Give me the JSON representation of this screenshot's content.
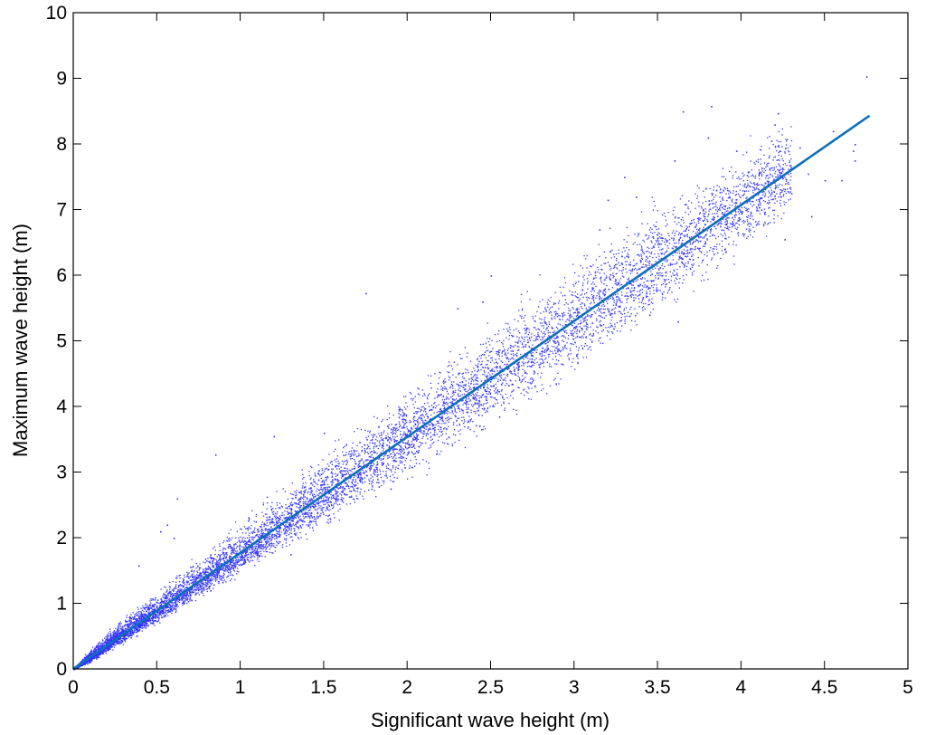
{
  "chart_data": {
    "type": "scatter",
    "title": "",
    "xlabel": "Significant wave height (m)",
    "ylabel": "Maximum wave height (m)",
    "xlim": [
      0,
      5
    ],
    "ylim": [
      0,
      10
    ],
    "xticks": [
      0,
      0.5,
      1,
      1.5,
      2,
      2.5,
      3,
      3.5,
      4,
      4.5,
      5
    ],
    "xtick_labels": [
      "0",
      "0.5",
      "1",
      "1.5",
      "2",
      "2.5",
      "3",
      "3.5",
      "4",
      "4.5",
      "5"
    ],
    "yticks": [
      0,
      1,
      2,
      3,
      4,
      5,
      6,
      7,
      8,
      9,
      10
    ],
    "ytick_labels": [
      "0",
      "1",
      "2",
      "3",
      "4",
      "5",
      "6",
      "7",
      "8",
      "9",
      "10"
    ],
    "grid": false,
    "colors": {
      "points": "#3333ff",
      "fit_line": "#0e6fb8",
      "axes": "#000000"
    },
    "series": [
      {
        "kind": "points",
        "summary_bands": [
          {
            "hs": 0.1,
            "hmax_low": 0.12,
            "hmax_center": 0.18,
            "hmax_high": 0.27
          },
          {
            "hs": 0.25,
            "hmax_low": 0.36,
            "hmax_center": 0.45,
            "hmax_high": 0.62
          },
          {
            "hs": 0.5,
            "hmax_low": 0.75,
            "hmax_center": 0.89,
            "hmax_high": 1.1
          },
          {
            "hs": 0.75,
            "hmax_low": 1.15,
            "hmax_center": 1.33,
            "hmax_high": 1.6
          },
          {
            "hs": 1.0,
            "hmax_low": 1.55,
            "hmax_center": 1.77,
            "hmax_high": 2.1
          },
          {
            "hs": 1.5,
            "hmax_low": 2.3,
            "hmax_center": 2.66,
            "hmax_high": 3.1
          },
          {
            "hs": 2.0,
            "hmax_low": 3.1,
            "hmax_center": 3.55,
            "hmax_high": 4.1
          },
          {
            "hs": 2.5,
            "hmax_low": 3.9,
            "hmax_center": 4.44,
            "hmax_high": 5.0
          },
          {
            "hs": 3.0,
            "hmax_low": 4.7,
            "hmax_center": 5.32,
            "hmax_high": 6.0
          },
          {
            "hs": 3.5,
            "hmax_low": 5.6,
            "hmax_center": 6.2,
            "hmax_high": 6.9
          },
          {
            "hs": 4.0,
            "hmax_low": 6.5,
            "hmax_center": 7.1,
            "hmax_high": 7.7
          }
        ],
        "outliers": [
          [
            0.39,
            1.58
          ],
          [
            0.52,
            2.1
          ],
          [
            0.56,
            2.2
          ],
          [
            0.6,
            2.0
          ],
          [
            0.62,
            2.6
          ],
          [
            0.82,
            1.2
          ],
          [
            0.85,
            3.27
          ],
          [
            1.05,
            2.3
          ],
          [
            1.2,
            3.55
          ],
          [
            1.3,
            1.75
          ],
          [
            1.5,
            3.6
          ],
          [
            1.75,
            5.73
          ],
          [
            1.9,
            2.75
          ],
          [
            2.3,
            5.5
          ],
          [
            2.45,
            5.6
          ],
          [
            2.5,
            6.0
          ],
          [
            2.55,
            3.85
          ],
          [
            3.15,
            6.7
          ],
          [
            3.2,
            7.15
          ],
          [
            3.3,
            7.5
          ],
          [
            3.37,
            7.2
          ],
          [
            3.45,
            5.4
          ],
          [
            3.6,
            7.75
          ],
          [
            3.62,
            5.3
          ],
          [
            3.65,
            8.5
          ],
          [
            3.7,
            6.3
          ],
          [
            3.8,
            8.1
          ],
          [
            3.82,
            8.58
          ],
          [
            3.85,
            7.3
          ],
          [
            3.9,
            6.4
          ],
          [
            3.97,
            7.9
          ],
          [
            4.05,
            6.8
          ],
          [
            4.12,
            7.0
          ],
          [
            4.18,
            8.05
          ],
          [
            4.2,
            8.3
          ],
          [
            4.22,
            8.47
          ],
          [
            4.26,
            6.55
          ],
          [
            4.3,
            7.25
          ],
          [
            4.35,
            7.95
          ],
          [
            4.4,
            7.55
          ],
          [
            4.42,
            6.9
          ],
          [
            4.5,
            7.45
          ],
          [
            4.55,
            8.2
          ],
          [
            4.6,
            7.45
          ],
          [
            4.67,
            7.9
          ],
          [
            4.68,
            8.0
          ],
          [
            4.68,
            7.75
          ],
          [
            4.75,
            9.03
          ]
        ]
      },
      {
        "kind": "fit-line",
        "x": [
          0,
          4.77
        ],
        "y": [
          0,
          8.43
        ]
      }
    ]
  }
}
